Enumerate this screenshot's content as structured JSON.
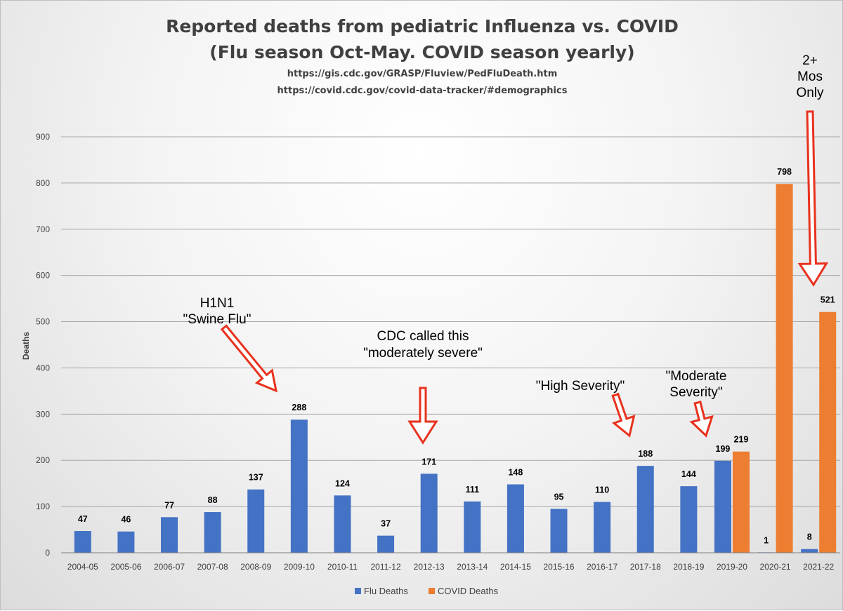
{
  "chart_data": {
    "type": "bar",
    "title": "Reported deaths from pediatric Influenza vs. COVID",
    "subtitle": "(Flu season Oct-May.  COVID season yearly)",
    "source_urls": [
      "https://gis.cdc.gov/GRASP/Fluview/PedFluDeath.htm",
      "https://covid.cdc.gov/covid-data-tracker/#demographics"
    ],
    "xlabel": "",
    "ylabel": "Deaths",
    "ylim": [
      0,
      900
    ],
    "yticks": [
      "0",
      "100",
      "200",
      "300",
      "400",
      "500",
      "600",
      "700",
      "800",
      "900"
    ],
    "grid": true,
    "legend_position": "bottom",
    "categories": [
      "2004-05",
      "2005-06",
      "2006-07",
      "2007-08",
      "2008-09",
      "2009-10",
      "2010-11",
      "2011-12",
      "2012-13",
      "2013-14",
      "2014-15",
      "2015-16",
      "2016-17",
      "2017-18",
      "2018-19",
      "2019-20",
      "2020-21",
      "2021-22"
    ],
    "series": [
      {
        "name": "Flu Deaths",
        "color": "#4472c4",
        "values": [
          47,
          46,
          77,
          88,
          137,
          288,
          124,
          37,
          171,
          111,
          148,
          95,
          110,
          188,
          144,
          199,
          1,
          8
        ]
      },
      {
        "name": "COVID Deaths",
        "color": "#ed7d31",
        "values": [
          null,
          null,
          null,
          null,
          null,
          null,
          null,
          null,
          null,
          null,
          null,
          null,
          null,
          null,
          null,
          219,
          798,
          521
        ]
      }
    ],
    "annotations": [
      {
        "lines": [
          "H1N1",
          "\"Swine Flu\""
        ]
      },
      {
        "lines": [
          "CDC called this",
          "\"moderately severe\""
        ]
      },
      {
        "lines": [
          "\"High Severity\""
        ]
      },
      {
        "lines": [
          "\"Moderate",
          "Severity\""
        ]
      },
      {
        "lines": [
          "2+",
          "Mos",
          "Only"
        ]
      }
    ],
    "annotation_color": "#e8321e"
  }
}
